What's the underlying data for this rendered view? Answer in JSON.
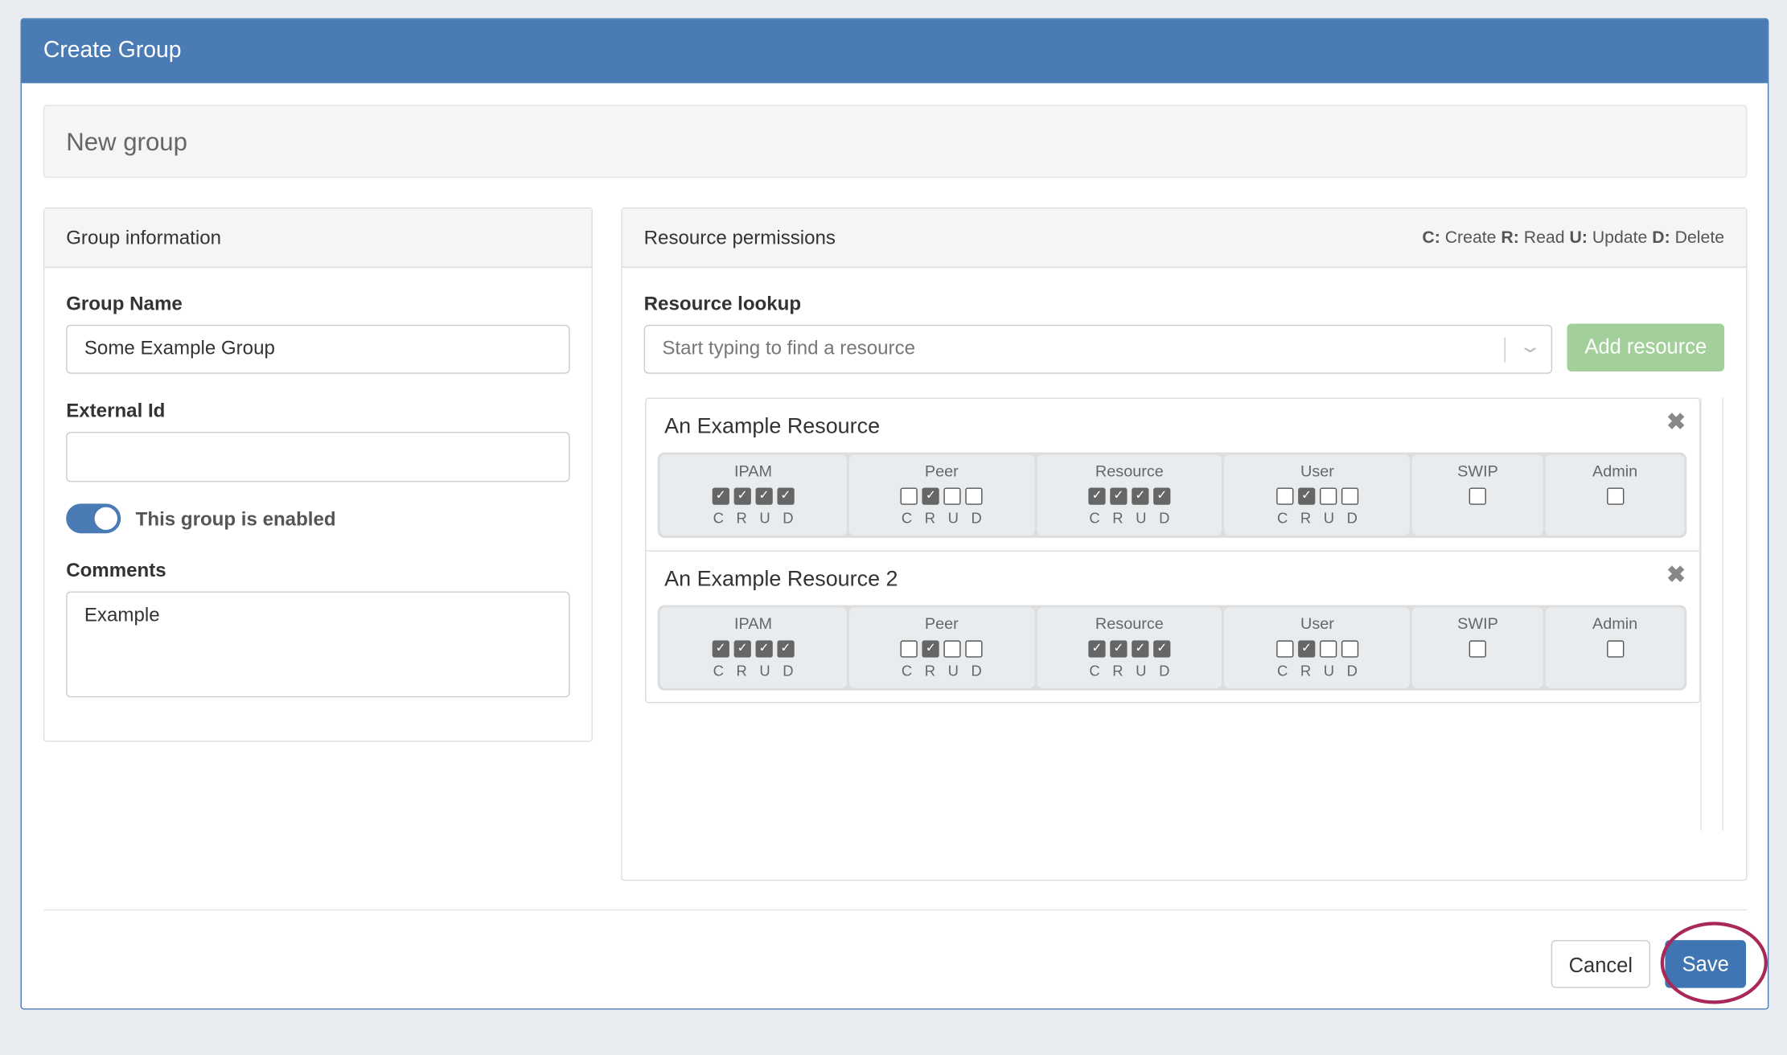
{
  "modal": {
    "title": "Create Group",
    "subtitle": "New group"
  },
  "group_info": {
    "heading": "Group information",
    "name_label": "Group Name",
    "name_value": "Some Example Group",
    "external_label": "External Id",
    "external_value": "",
    "toggle_label": "This group is enabled",
    "toggle_on": true,
    "comments_label": "Comments",
    "comments_value": "Example"
  },
  "permissions": {
    "heading": "Resource permissions",
    "legend": [
      {
        "k": "C:",
        "v": " Create "
      },
      {
        "k": "R:",
        "v": " Read "
      },
      {
        "k": "U:",
        "v": " Update "
      },
      {
        "k": "D:",
        "v": " Delete"
      }
    ],
    "lookup_label": "Resource lookup",
    "lookup_placeholder": "Start typing to find a resource",
    "add_label": "Add resource",
    "letters": [
      "C",
      "R",
      "U",
      "D"
    ],
    "resources": [
      {
        "name": "An Example Resource",
        "groups": [
          {
            "name": "IPAM",
            "checks": [
              true,
              true,
              true,
              true
            ]
          },
          {
            "name": "Peer",
            "checks": [
              false,
              true,
              false,
              false
            ]
          },
          {
            "name": "Resource",
            "checks": [
              true,
              true,
              true,
              true
            ]
          },
          {
            "name": "User",
            "checks": [
              false,
              true,
              false,
              false
            ]
          },
          {
            "name": "SWIP",
            "checks": [
              false
            ]
          },
          {
            "name": "Admin",
            "checks": [
              false
            ]
          }
        ]
      },
      {
        "name": "An Example Resource 2",
        "groups": [
          {
            "name": "IPAM",
            "checks": [
              true,
              true,
              true,
              true
            ]
          },
          {
            "name": "Peer",
            "checks": [
              false,
              true,
              false,
              false
            ]
          },
          {
            "name": "Resource",
            "checks": [
              true,
              true,
              true,
              true
            ]
          },
          {
            "name": "User",
            "checks": [
              false,
              true,
              false,
              false
            ]
          },
          {
            "name": "SWIP",
            "checks": [
              false
            ]
          },
          {
            "name": "Admin",
            "checks": [
              false
            ]
          }
        ]
      }
    ]
  },
  "footer": {
    "cancel": "Cancel",
    "save": "Save"
  },
  "colors": {
    "header": "#4a7bb5",
    "save": "#3f75b3",
    "add": "#a3cf9b",
    "highlight": "#a8285a"
  }
}
